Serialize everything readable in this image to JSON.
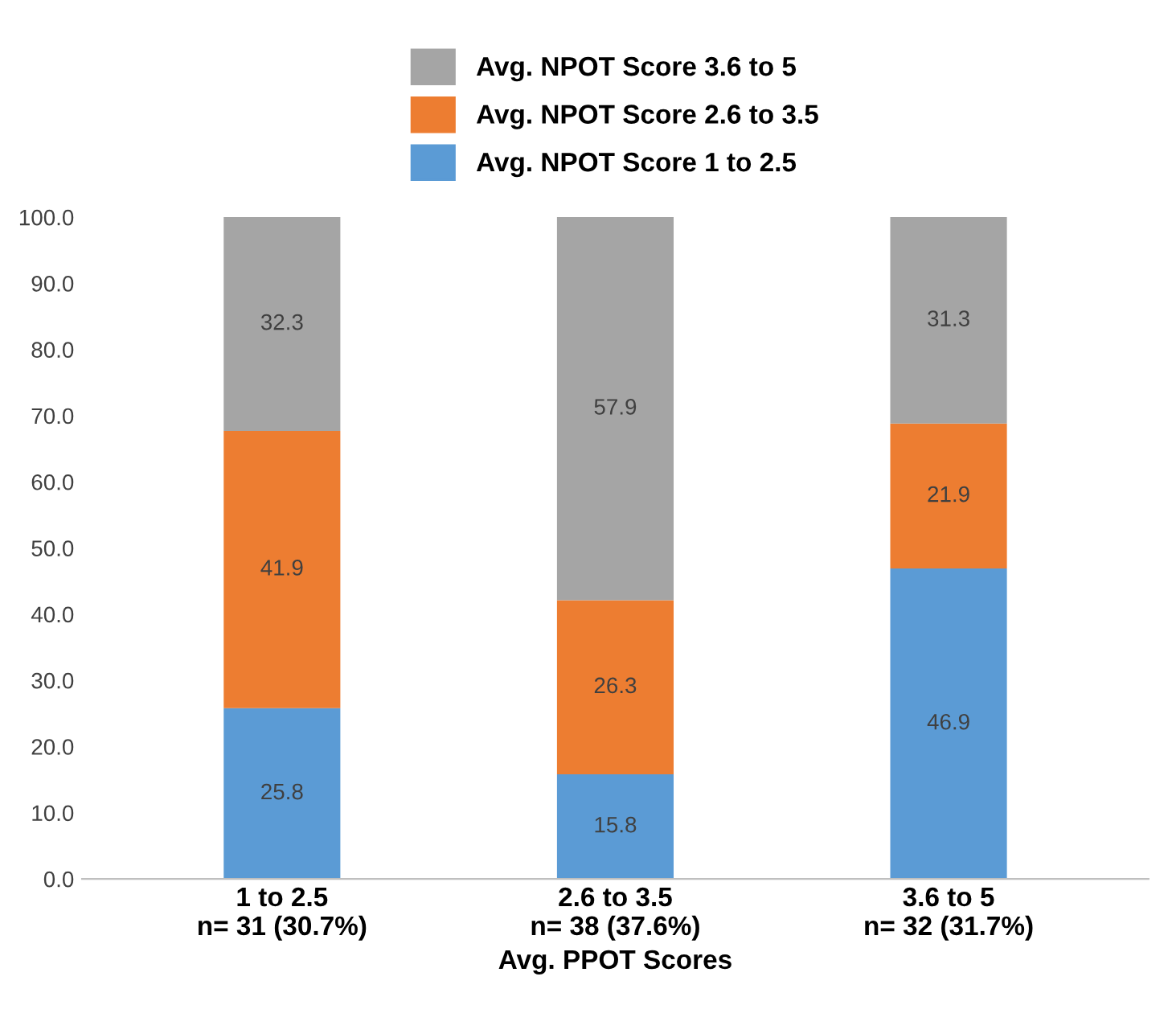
{
  "chart_data": {
    "type": "bar",
    "stacked": true,
    "categories": [
      "1 to 2.5\nn= 31 (30.7%)",
      "2.6 to 3.5\nn= 38 (37.6%)",
      "3.6 to 5\nn= 32 (31.7%)"
    ],
    "series": [
      {
        "name": "Avg. NPOT Score 1 to 2.5",
        "color": "#5b9bd5",
        "values": [
          25.8,
          15.8,
          46.9
        ]
      },
      {
        "name": "Avg. NPOT Score 2.6 to 3.5",
        "color": "#ed7d31",
        "values": [
          41.9,
          26.3,
          21.9
        ]
      },
      {
        "name": "Avg. NPOT Score 3.6 to 5",
        "color": "#a5a5a5",
        "values": [
          32.3,
          57.9,
          31.3
        ]
      }
    ],
    "xlabel": "Avg. PPOT Scores",
    "ylim": [
      0,
      100
    ],
    "yticks": [
      {
        "value": 0,
        "label": "0.0"
      },
      {
        "value": 10,
        "label": "10.0"
      },
      {
        "value": 20,
        "label": "20.0"
      },
      {
        "value": 30,
        "label": "30.0"
      },
      {
        "value": 40,
        "label": "40.0"
      },
      {
        "value": 50,
        "label": "50.0"
      },
      {
        "value": 60,
        "label": "60.0"
      },
      {
        "value": 70,
        "label": "70.0"
      },
      {
        "value": 80,
        "label": "80.0"
      },
      {
        "value": 90,
        "label": "90.0"
      },
      {
        "value": 100,
        "label": "100.0"
      }
    ],
    "data_labels": true,
    "legend": "top",
    "grid": false
  }
}
